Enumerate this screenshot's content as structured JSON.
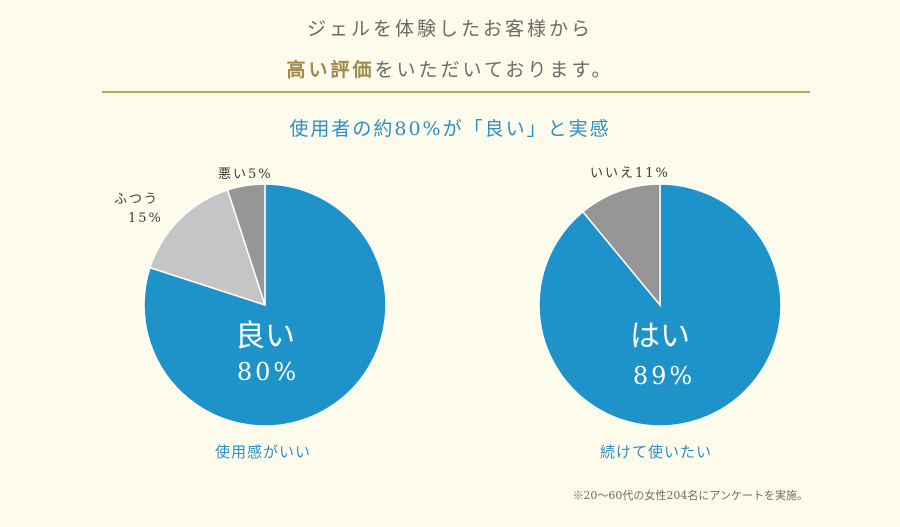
{
  "header": {
    "line1": "ジェルを体験したお客様から",
    "line2_highlight": "高い評価",
    "line2_rest": "をいただいております。"
  },
  "subtitle": "使用者の約80%が「良い」と実感",
  "chart_data": [
    {
      "type": "pie",
      "caption": "使用感がいい",
      "slices": [
        {
          "label": "良い",
          "value": 80,
          "color": "#1e93c9"
        },
        {
          "label": "ふつう",
          "value": 15,
          "color": "#c5c5c5"
        },
        {
          "label": "悪い",
          "value": 5,
          "color": "#969696"
        }
      ],
      "center": {
        "word": "良い",
        "pct": "80%"
      },
      "labels": {
        "futsuu_name": "ふつう",
        "futsuu_pct": "15%",
        "warui": "悪い5%"
      }
    },
    {
      "type": "pie",
      "caption": "続けて使いたい",
      "slices": [
        {
          "label": "はい",
          "value": 89,
          "color": "#1e93c9"
        },
        {
          "label": "いいえ",
          "value": 11,
          "color": "#969696"
        }
      ],
      "center": {
        "word": "はい",
        "pct": "89%"
      },
      "labels": {
        "iie": "いいえ11%"
      }
    }
  ],
  "footnote": "※20～60代の女性204名にアンケートを実施。"
}
